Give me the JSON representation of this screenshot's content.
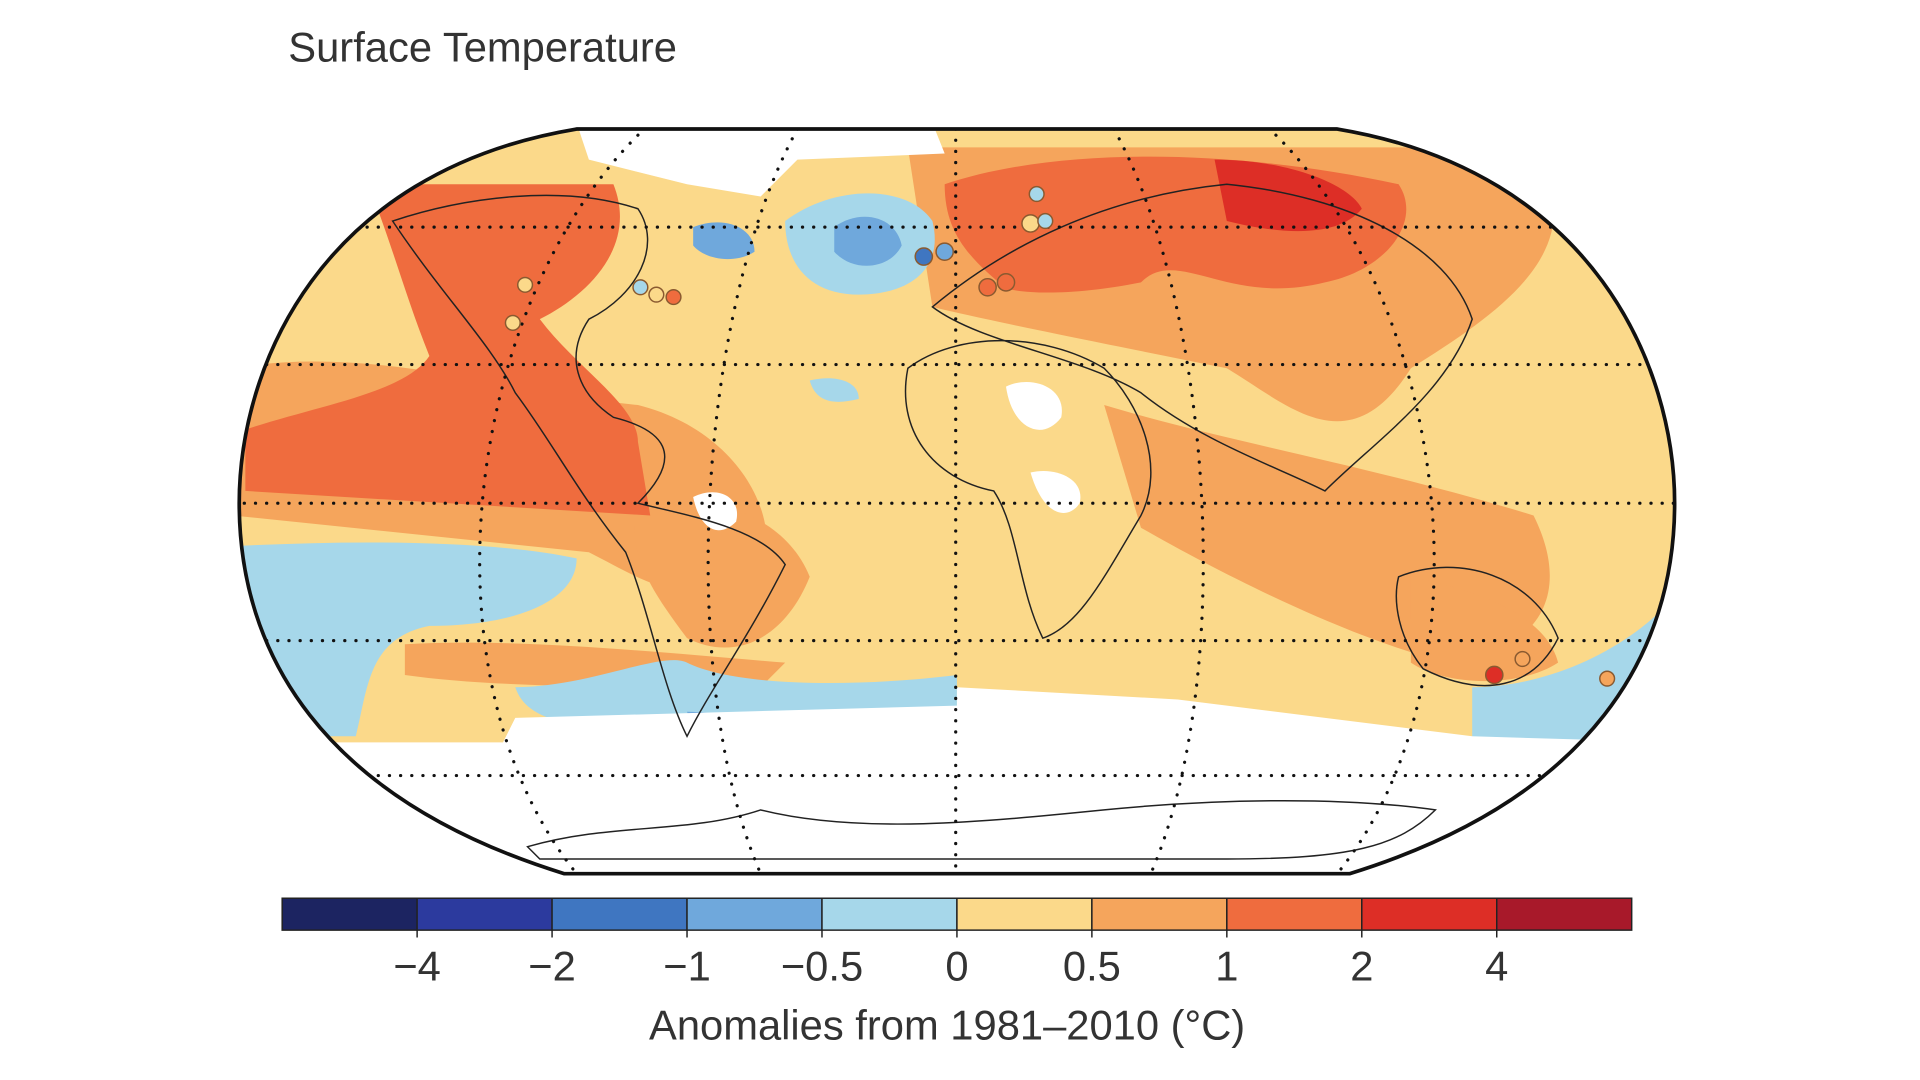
{
  "title": "Surface Temperature",
  "colorbar": {
    "colors": [
      "#1c2461",
      "#2c3a9e",
      "#3f76c1",
      "#6fa8dc",
      "#a6d7ea",
      "#fbd98a",
      "#f5a55c",
      "#ef6c3e",
      "#dd2e26",
      "#a8192a"
    ],
    "ticks": [
      {
        "value": -4,
        "label": "−4"
      },
      {
        "value": -2,
        "label": "−2"
      },
      {
        "value": -1,
        "label": "−1"
      },
      {
        "value": -0.5,
        "label": "−0.5"
      },
      0,
      0.5,
      1,
      2,
      4
    ],
    "label": "Anomalies from 1981–2010 (°C)"
  }
}
